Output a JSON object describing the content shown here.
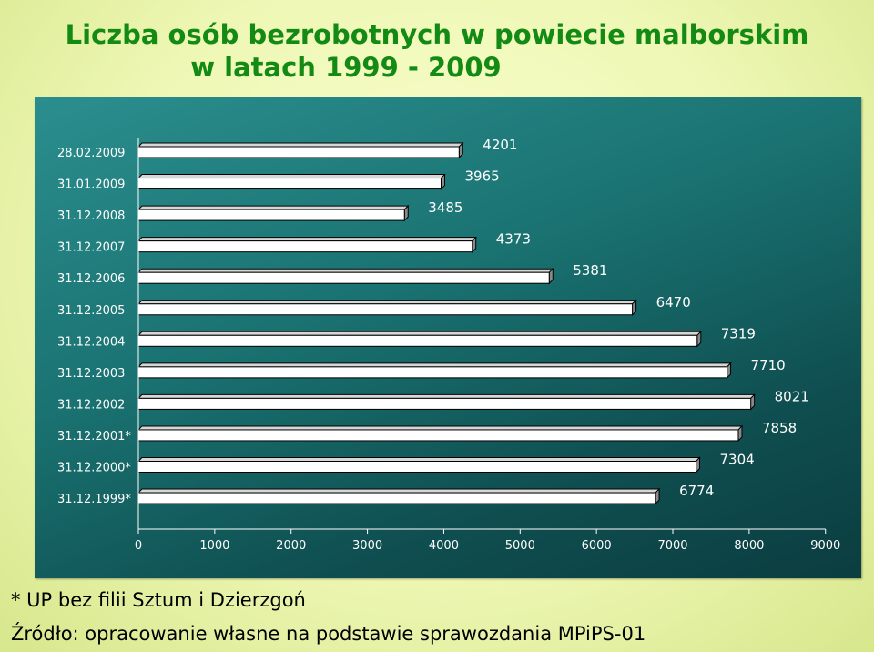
{
  "title_line1": "Liczba osób bezrobotnych w powiecie malborskim",
  "title_line2": "w latach 1999 - 2009",
  "footnote": "* UP bez filii Sztum i Dzierzgoń",
  "source": "Źródło: opracowanie własne na podstawie sprawozdania MPiPS-01",
  "colors": {
    "plot_bg": "#1a7372",
    "bar_fill": "#ffffff",
    "title": "#138a13",
    "labels": "#ffffff"
  },
  "chart_data": {
    "type": "bar",
    "orientation": "horizontal",
    "categories": [
      "28.02.2009",
      "31.01.2009",
      "31.12.2008",
      "31.12.2007",
      "31.12.2006",
      "31.12.2005",
      "31.12.2004",
      "31.12.2003",
      "31.12.2002",
      "31.12.2001*",
      "31.12.2000*",
      "31.12.1999*"
    ],
    "values": [
      4201,
      3965,
      3485,
      4373,
      5381,
      6470,
      7319,
      7710,
      8021,
      7858,
      7304,
      6774
    ],
    "data_label_strings": [
      "4201",
      "3965",
      "3485",
      "4373",
      "5381",
      "6470",
      "7319",
      "7710",
      "8021",
      "7858",
      "7304",
      "6774"
    ],
    "x_ticks": [
      0,
      1000,
      2000,
      3000,
      4000,
      5000,
      6000,
      7000,
      8000,
      9000
    ],
    "x_tick_labels": [
      "0",
      "1000",
      "2000",
      "3000",
      "4000",
      "5000",
      "6000",
      "7000",
      "8000",
      "9000"
    ],
    "xlim": [
      0,
      9000
    ],
    "grid": false,
    "legend": "none",
    "bar_style": "3d"
  }
}
